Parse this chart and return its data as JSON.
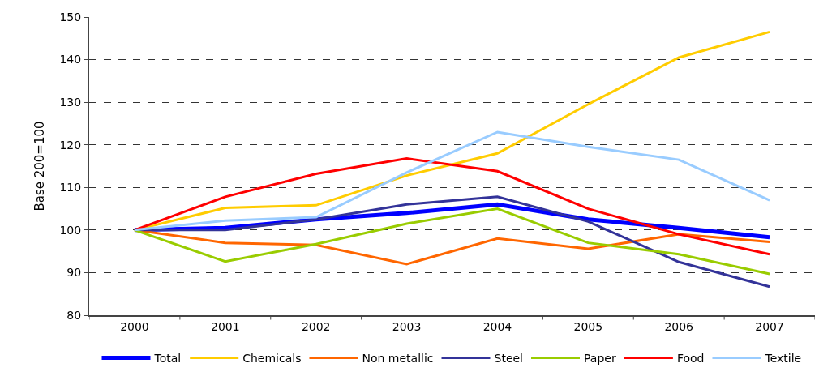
{
  "chart_data": {
    "type": "line",
    "ylabel": "Base 200=100",
    "categories": [
      "2000",
      "2001",
      "2002",
      "2003",
      "2004",
      "2005",
      "2006",
      "2007"
    ],
    "series": [
      {
        "name": "Total",
        "color": "#0000ff",
        "values": [
          100,
          100.5,
          102.5,
          104,
          106,
          102.5,
          100.5,
          98.3
        ]
      },
      {
        "name": "Chemicals",
        "color": "#ffcc00",
        "values": [
          100,
          105.2,
          105.8,
          112.8,
          118,
          129.5,
          140.5,
          146.5
        ]
      },
      {
        "name": "Non metallic",
        "color": "#ff6600",
        "values": [
          100,
          97,
          96.5,
          92,
          98,
          95.6,
          99,
          97.2
        ]
      },
      {
        "name": "Steel",
        "color": "#333399",
        "values": [
          100,
          100,
          102.5,
          106,
          107.8,
          102,
          92.5,
          86.7
        ]
      },
      {
        "name": "Paper",
        "color": "#99cc00",
        "values": [
          100,
          92.6,
          96.7,
          101.5,
          105,
          97,
          94.3,
          89.7
        ]
      },
      {
        "name": "Food",
        "color": "#ff0000",
        "values": [
          100,
          107.8,
          113.2,
          116.8,
          113.8,
          105,
          99,
          94.3
        ]
      },
      {
        "name": "Textile",
        "color": "#99ccff",
        "values": [
          100,
          102.2,
          103,
          113.5,
          123,
          119.5,
          116.5,
          107
        ]
      }
    ],
    "ylim": [
      80,
      150
    ],
    "yticks": [
      80,
      90,
      100,
      110,
      120,
      130,
      140,
      150
    ],
    "grid": "y",
    "legend": "bottom",
    "marker": "none",
    "line_style": "solid"
  }
}
